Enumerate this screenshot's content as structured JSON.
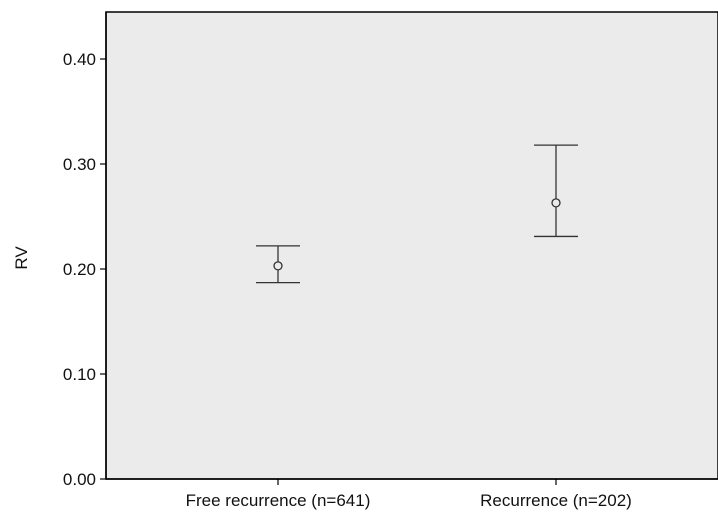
{
  "chart_data": {
    "type": "errorbar",
    "title": "",
    "xlabel": "",
    "ylabel": "RV",
    "categories": [
      "Free recurrence (n=641)",
      "Recurrence (n=202)"
    ],
    "series": [
      {
        "values": [
          0.203,
          0.263
        ],
        "lower": [
          0.187,
          0.231
        ],
        "upper": [
          0.222,
          0.318
        ]
      }
    ],
    "yticks": [
      "0.00",
      "0.10",
      "0.20",
      "0.30",
      "0.40"
    ],
    "ytick_values": [
      0.0,
      0.1,
      0.2,
      0.3,
      0.4
    ],
    "ylim": [
      0.0,
      0.4
    ],
    "grid": false,
    "legend": "none",
    "colors": {
      "plot_background": "#ebebeb",
      "axis": "#000000",
      "marks": "#333333"
    }
  }
}
